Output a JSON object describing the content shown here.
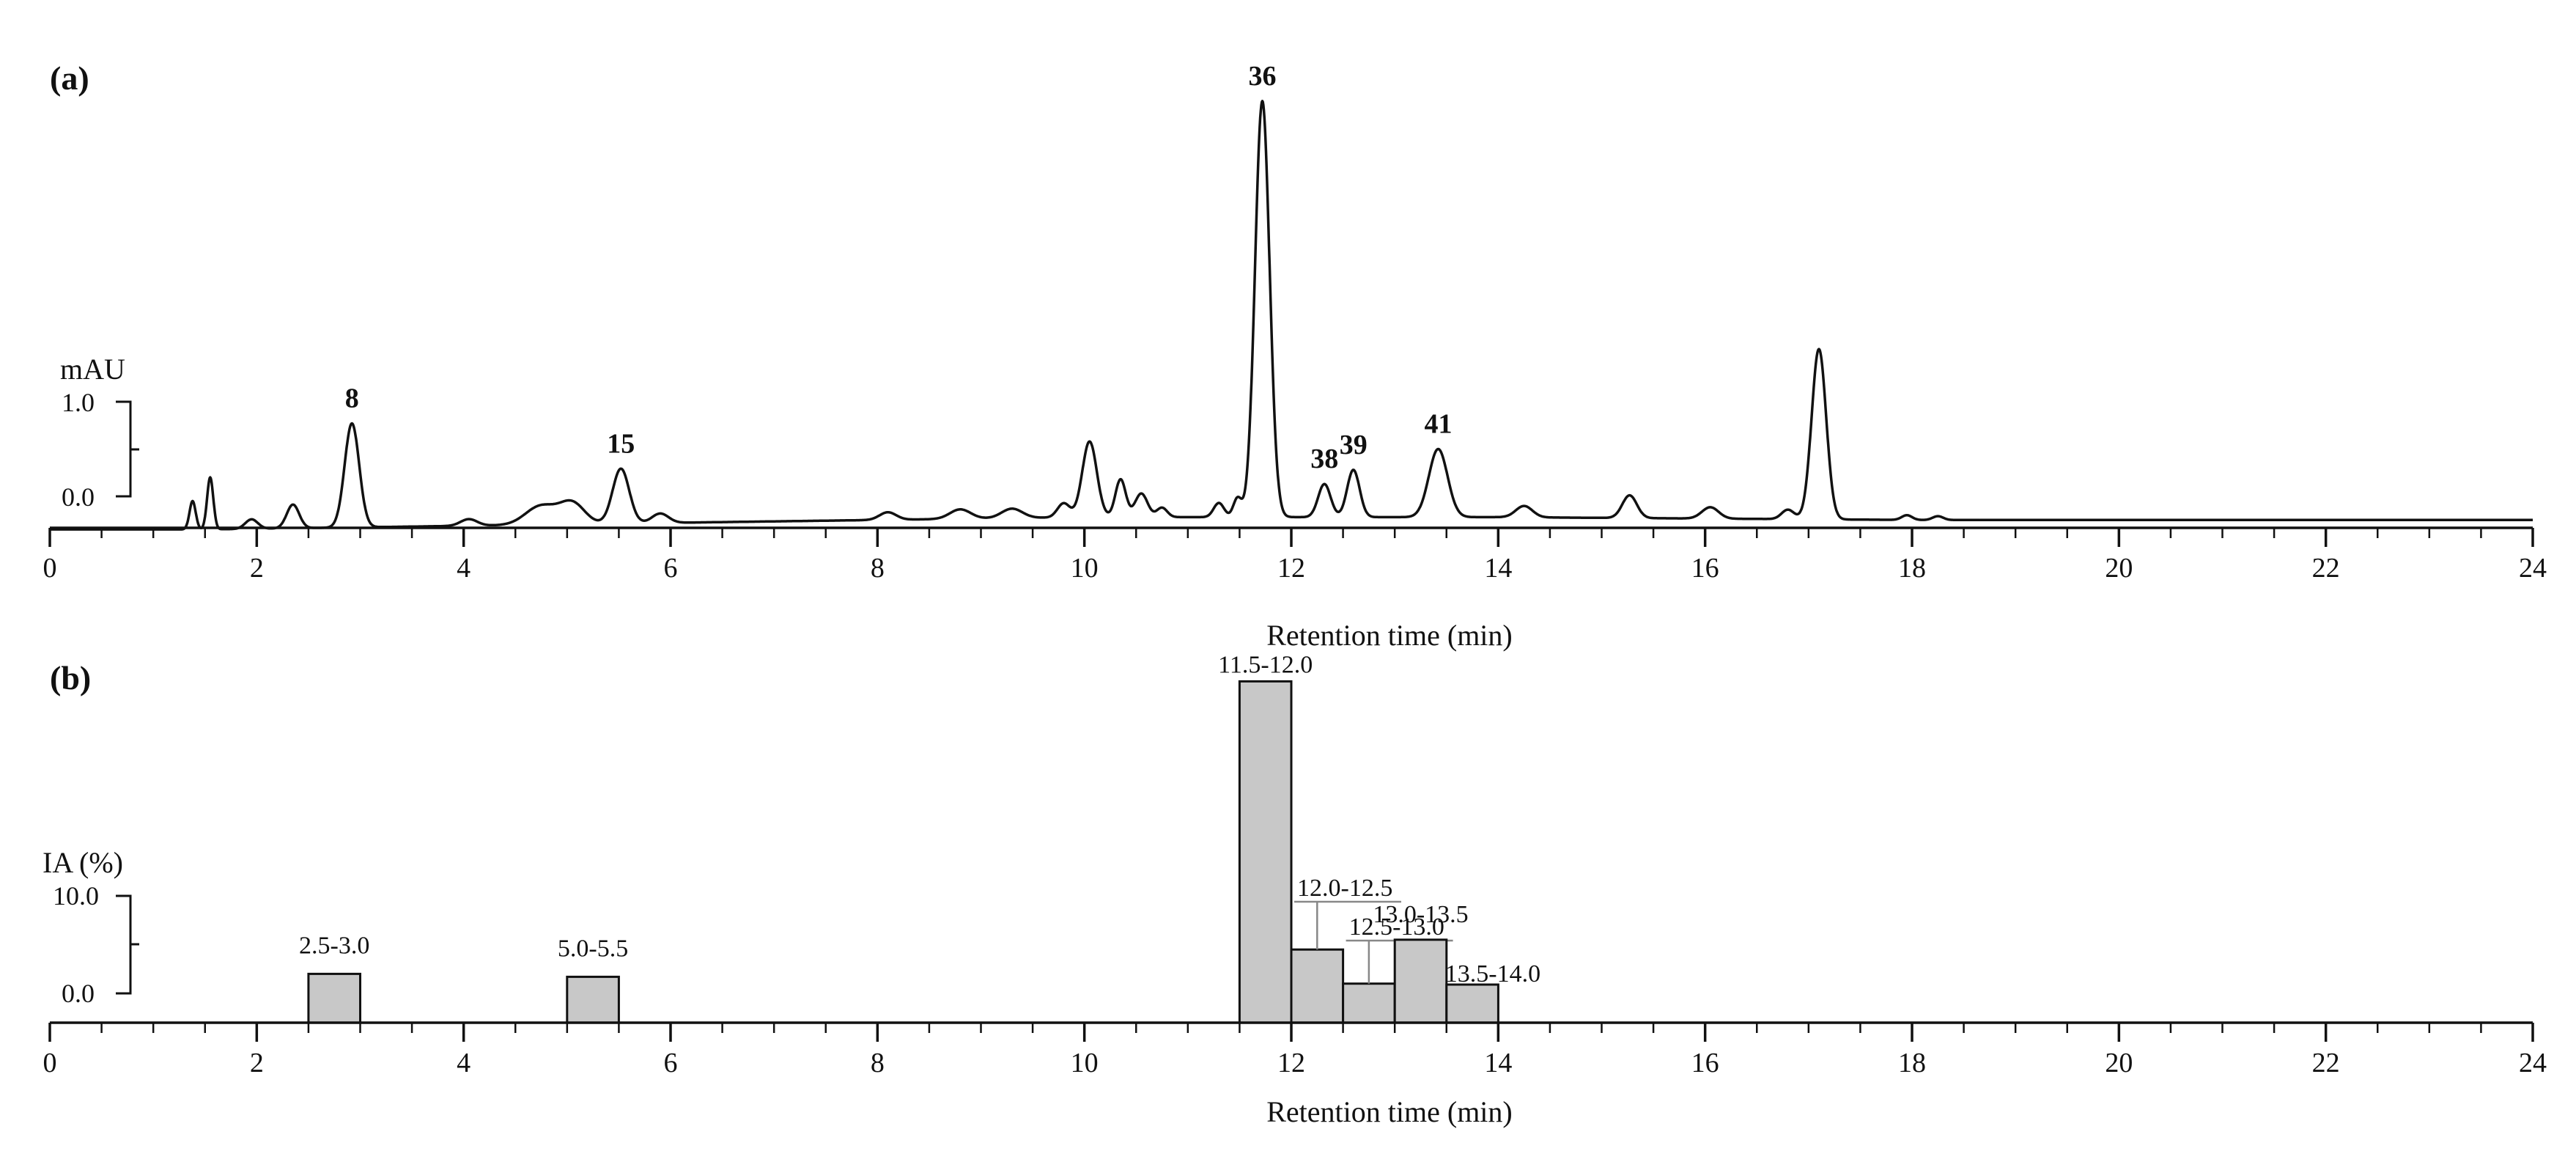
{
  "chart_data": [
    {
      "panel": "(a)",
      "type": "line",
      "xlabel": "Retention time (min)",
      "xlim": [
        0,
        24
      ],
      "x_ticks": [
        0,
        2,
        4,
        6,
        8,
        10,
        12,
        14,
        16,
        18,
        20,
        22,
        24
      ],
      "ylabel": "mAU",
      "y_scale_ticks": [
        "1.0",
        "0.0"
      ],
      "ylim": [
        -0.3,
        4.6
      ],
      "grid": false,
      "legend": "none",
      "baseline": [
        [
          0,
          -0.35
        ],
        [
          1.5,
          -0.35
        ],
        [
          3.5,
          -0.32
        ],
        [
          6,
          -0.28
        ],
        [
          10,
          -0.22
        ],
        [
          14,
          -0.22
        ],
        [
          18,
          -0.25
        ],
        [
          24,
          -0.25
        ]
      ],
      "peaks": [
        {
          "rt": 1.38,
          "height": 0.3,
          "width": 0.03
        },
        {
          "rt": 1.55,
          "height": 0.55,
          "width": 0.03
        },
        {
          "rt": 1.95,
          "height": 0.1,
          "width": 0.06
        },
        {
          "rt": 2.35,
          "height": 0.25,
          "width": 0.06
        },
        {
          "rt": 2.92,
          "height": 1.1,
          "width": 0.07,
          "label": "8"
        },
        {
          "rt": 4.05,
          "height": 0.07,
          "width": 0.08
        },
        {
          "rt": 4.75,
          "height": 0.2,
          "width": 0.15
        },
        {
          "rt": 5.05,
          "height": 0.22,
          "width": 0.12
        },
        {
          "rt": 5.52,
          "height": 0.58,
          "width": 0.08,
          "label": "15"
        },
        {
          "rt": 5.9,
          "height": 0.1,
          "width": 0.08
        },
        {
          "rt": 8.1,
          "height": 0.08,
          "width": 0.08
        },
        {
          "rt": 8.8,
          "height": 0.1,
          "width": 0.1
        },
        {
          "rt": 9.3,
          "height": 0.1,
          "width": 0.1
        },
        {
          "rt": 9.8,
          "height": 0.15,
          "width": 0.06
        },
        {
          "rt": 10.05,
          "height": 0.8,
          "width": 0.07
        },
        {
          "rt": 10.35,
          "height": 0.4,
          "width": 0.05
        },
        {
          "rt": 10.55,
          "height": 0.25,
          "width": 0.06
        },
        {
          "rt": 10.75,
          "height": 0.1,
          "width": 0.05
        },
        {
          "rt": 11.3,
          "height": 0.15,
          "width": 0.05
        },
        {
          "rt": 11.48,
          "height": 0.2,
          "width": 0.04
        },
        {
          "rt": 11.72,
          "height": 4.4,
          "width": 0.07,
          "label": "36"
        },
        {
          "rt": 12.32,
          "height": 0.35,
          "width": 0.06,
          "label": "38"
        },
        {
          "rt": 12.6,
          "height": 0.5,
          "width": 0.06,
          "label": "39"
        },
        {
          "rt": 13.42,
          "height": 0.72,
          "width": 0.09,
          "label": "41"
        },
        {
          "rt": 14.25,
          "height": 0.12,
          "width": 0.08
        },
        {
          "rt": 15.27,
          "height": 0.24,
          "width": 0.07
        },
        {
          "rt": 16.05,
          "height": 0.12,
          "width": 0.08
        },
        {
          "rt": 16.8,
          "height": 0.1,
          "width": 0.06
        },
        {
          "rt": 17.1,
          "height": 1.8,
          "width": 0.07
        },
        {
          "rt": 17.95,
          "height": 0.05,
          "width": 0.05
        },
        {
          "rt": 18.25,
          "height": 0.04,
          "width": 0.05
        }
      ]
    },
    {
      "panel": "(b)",
      "type": "bar",
      "xlabel": "Retention time (min)",
      "xlim": [
        0,
        24
      ],
      "x_ticks": [
        0,
        2,
        4,
        6,
        8,
        10,
        12,
        14,
        16,
        18,
        20,
        22,
        24
      ],
      "ylabel": "IA (%)",
      "y_scale_ticks": [
        "10.0",
        "0.0"
      ],
      "ylim": [
        -3,
        31
      ],
      "grid": false,
      "legend": "none",
      "bars": [
        {
          "label": "2.5-3.0",
          "start": 2.5,
          "end": 3.0,
          "value": 2.0
        },
        {
          "label": "5.0-5.5",
          "start": 5.0,
          "end": 5.5,
          "value": 1.7
        },
        {
          "label": "11.5-12.0",
          "start": 11.5,
          "end": 12.0,
          "value": 32.0
        },
        {
          "label": "12.0-12.5",
          "start": 12.0,
          "end": 12.5,
          "value": 4.5
        },
        {
          "label": "12.5-13.0",
          "start": 12.5,
          "end": 13.0,
          "value": 1.0
        },
        {
          "label": "13.0-13.5",
          "start": 13.0,
          "end": 13.5,
          "value": 5.5
        },
        {
          "label": "13.5-14.0",
          "start": 13.5,
          "end": 14.0,
          "value": 0.9
        }
      ]
    }
  ]
}
